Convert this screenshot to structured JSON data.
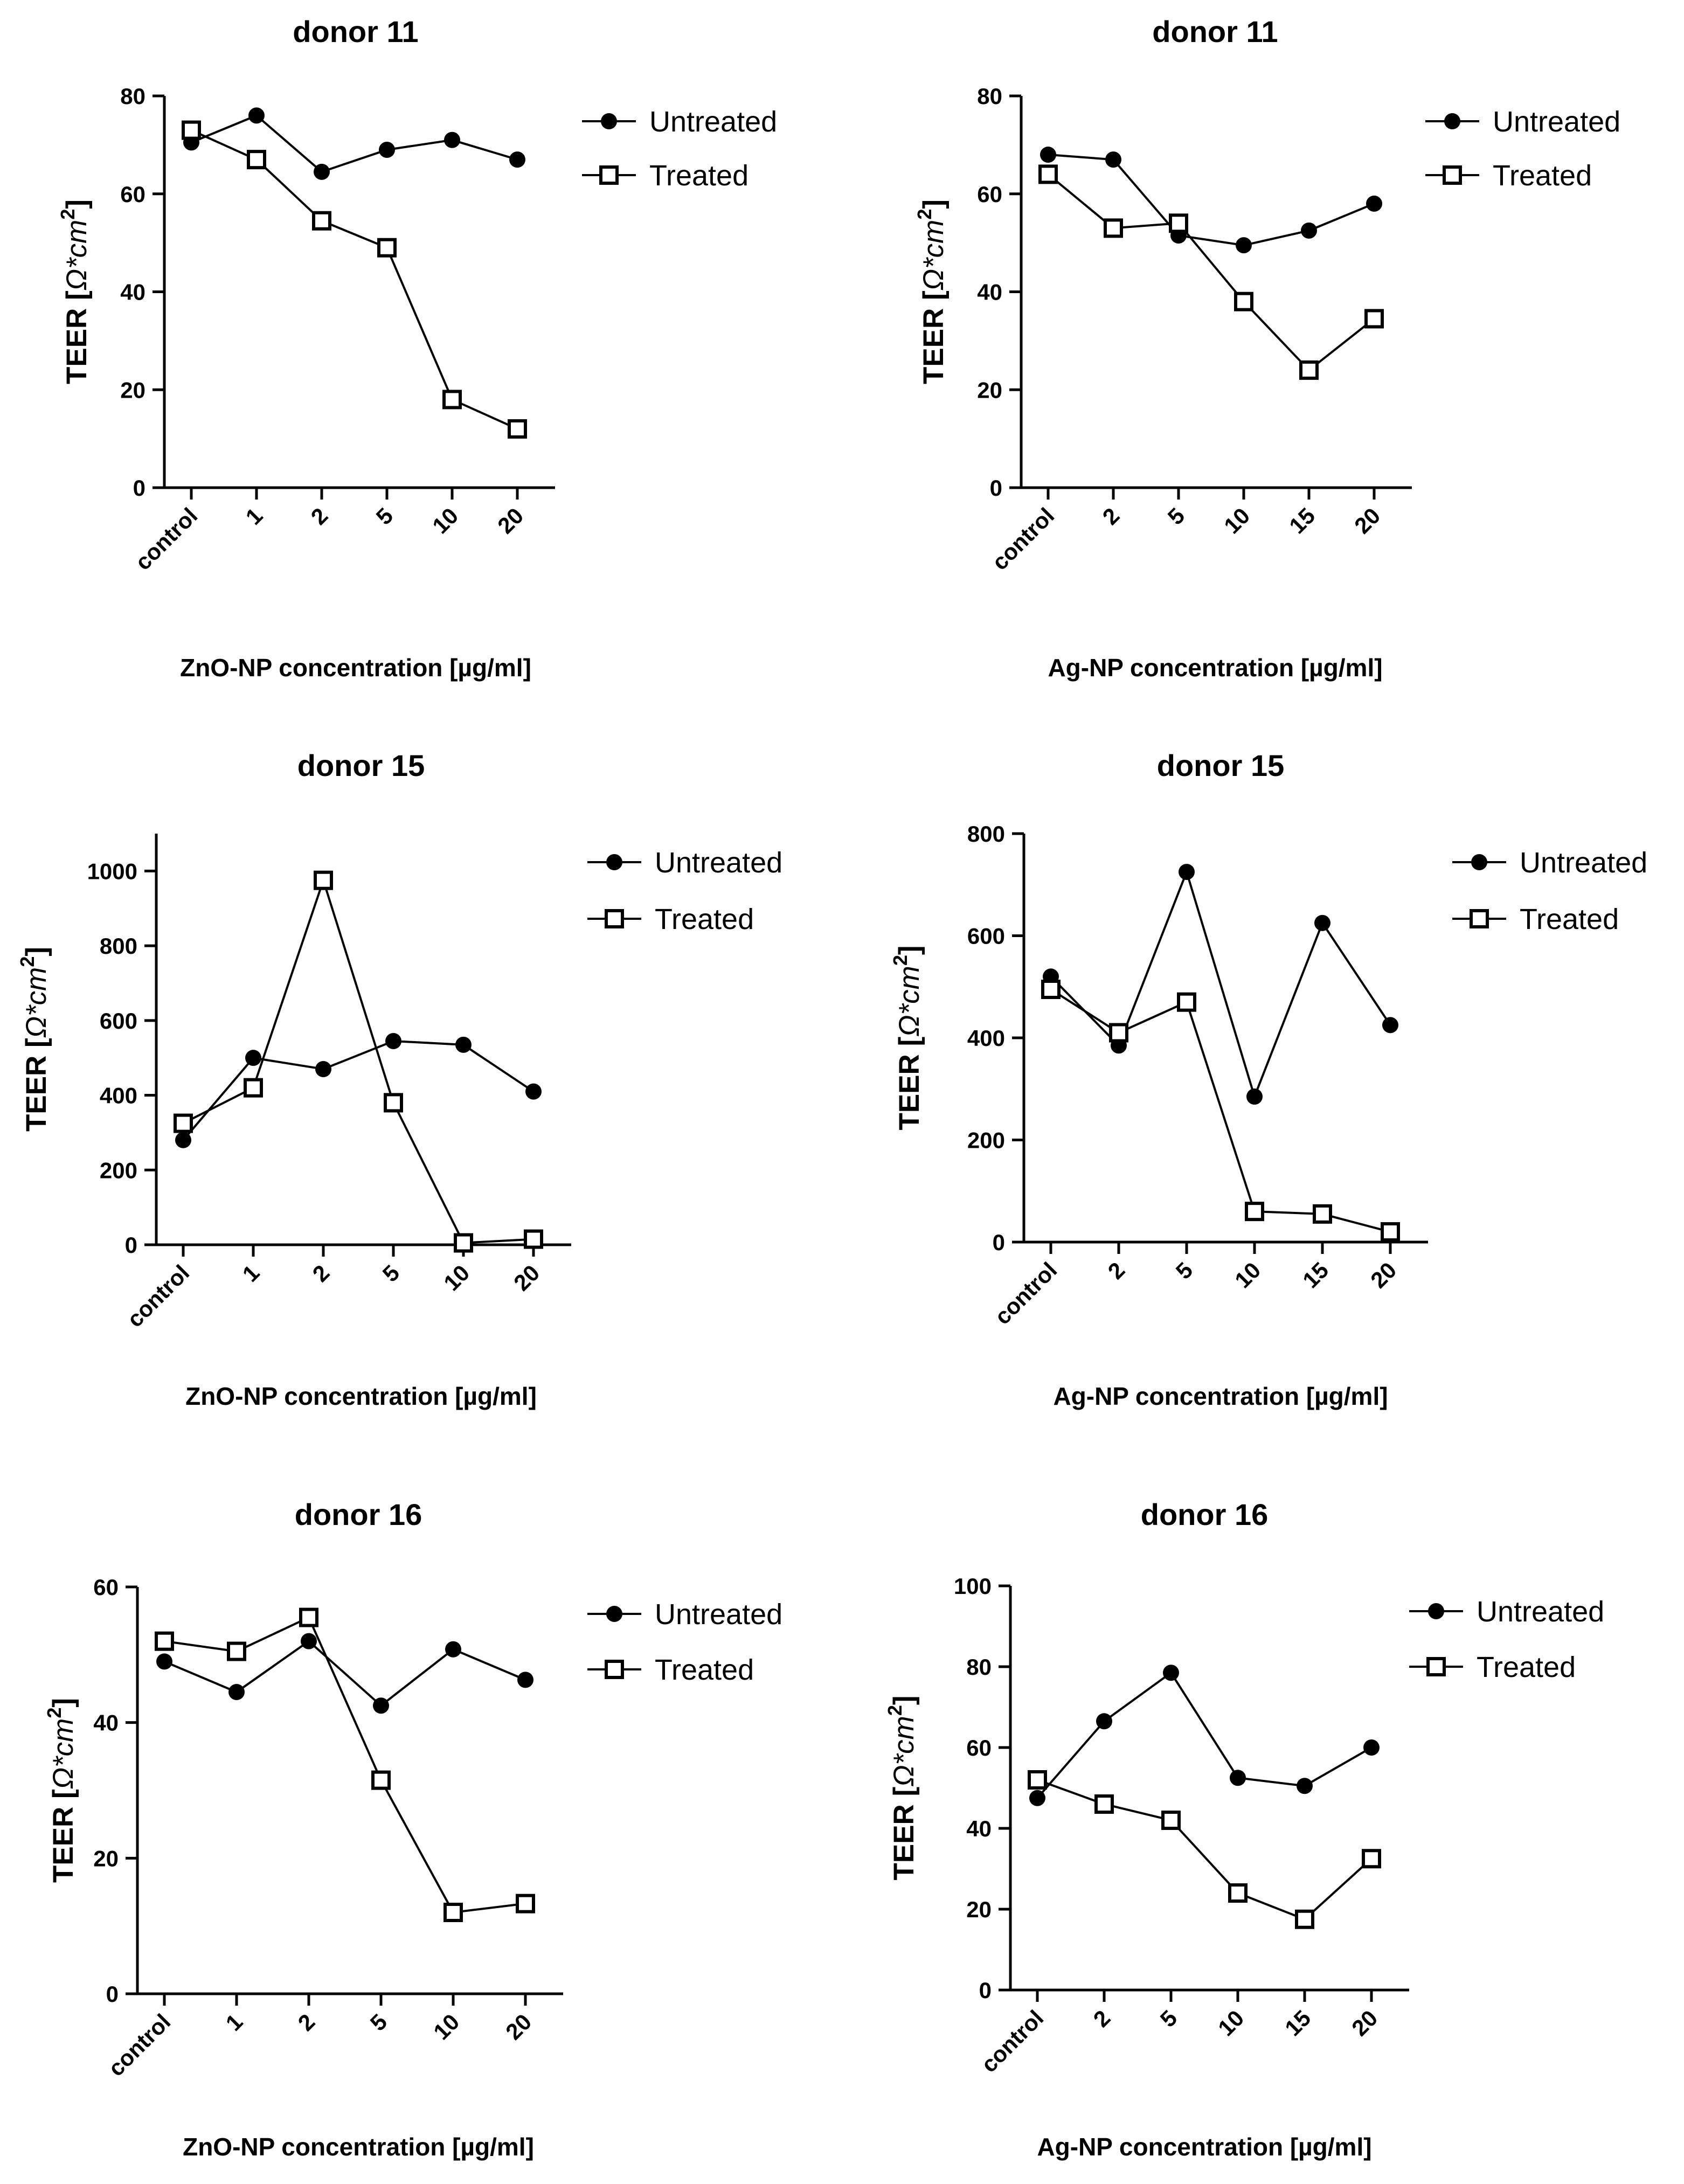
{
  "chart_data": [
    {
      "type": "line",
      "title": "donor 11",
      "xlabel": "ZnO-NP concentration [µg/ml]",
      "ylabel_main": "TEER [",
      "ylabel_unit": "Ω*cm",
      "ylabel_sup": "2",
      "ylabel_end": "]",
      "categories": [
        "control",
        "1",
        "2",
        "5",
        "10",
        "20"
      ],
      "ylim": [
        0,
        80
      ],
      "yticks": [
        "0",
        "20",
        "40",
        "60",
        "80"
      ],
      "series": [
        {
          "name": "Untreated",
          "values": [
            70.5,
            76,
            64.5,
            69,
            71,
            67
          ]
        },
        {
          "name": "Treated",
          "values": [
            73,
            67,
            54.5,
            49,
            18,
            12
          ]
        }
      ]
    },
    {
      "type": "line",
      "title": "donor 11",
      "xlabel": "Ag-NP concentration [µg/ml]",
      "ylabel_main": "TEER [",
      "ylabel_unit": "Ω*cm",
      "ylabel_sup": "2",
      "ylabel_end": "]",
      "categories": [
        "control",
        "2",
        "5",
        "10",
        "15",
        "20"
      ],
      "ylim": [
        0,
        80
      ],
      "yticks": [
        "0",
        "20",
        "40",
        "60",
        "80"
      ],
      "series": [
        {
          "name": "Untreated",
          "values": [
            68,
            67,
            51.5,
            49.5,
            52.5,
            58
          ]
        },
        {
          "name": "Treated",
          "values": [
            64,
            53,
            54,
            38,
            24,
            34.5
          ]
        }
      ]
    },
    {
      "type": "line",
      "title": "donor 15",
      "xlabel": "ZnO-NP concentration [µg/ml]",
      "ylabel_main": "TEER [",
      "ylabel_unit": "Ω*cm",
      "ylabel_sup": "2",
      "ylabel_end": "]",
      "categories": [
        "control",
        "1",
        "2",
        "5",
        "10",
        "20"
      ],
      "ylim": [
        0,
        1100
      ],
      "yticks": [
        "0",
        "200",
        "400",
        "600",
        "800",
        "1000"
      ],
      "series": [
        {
          "name": "Untreated",
          "values": [
            280,
            500,
            470,
            545,
            535,
            410
          ]
        },
        {
          "name": "Treated",
          "values": [
            325,
            420,
            975,
            380,
            5,
            15
          ]
        }
      ]
    },
    {
      "type": "line",
      "title": "donor 15",
      "xlabel": "Ag-NP concentration [µg/ml]",
      "ylabel_main": "TEER [",
      "ylabel_unit": "Ω*cm",
      "ylabel_sup": "2",
      "ylabel_end": "]",
      "categories": [
        "control",
        "2",
        "5",
        "10",
        "15",
        "20"
      ],
      "ylim": [
        0,
        800
      ],
      "yticks": [
        "0",
        "200",
        "400",
        "600",
        "800"
      ],
      "series": [
        {
          "name": "Untreated",
          "values": [
            520,
            385,
            725,
            285,
            625,
            425
          ]
        },
        {
          "name": "Treated",
          "values": [
            495,
            410,
            470,
            60,
            55,
            20
          ]
        }
      ]
    },
    {
      "type": "line",
      "title": "donor 16",
      "xlabel": "ZnO-NP concentration [µg/ml]",
      "ylabel_main": "TEER [",
      "ylabel_unit": "Ω*cm",
      "ylabel_sup": "2",
      "ylabel_end": "]",
      "categories": [
        "control",
        "1",
        "2",
        "5",
        "10",
        "20"
      ],
      "ylim": [
        0,
        60
      ],
      "yticks": [
        "0",
        "20",
        "40",
        "60"
      ],
      "series": [
        {
          "name": "Untreated",
          "values": [
            49,
            44.5,
            52,
            42.5,
            50.8,
            46.3
          ]
        },
        {
          "name": "Treated",
          "values": [
            52,
            50.5,
            55.5,
            31.5,
            12,
            13.3
          ]
        }
      ]
    },
    {
      "type": "line",
      "title": "donor 16",
      "xlabel": "Ag-NP concentration [µg/ml]",
      "ylabel_main": "TEER [",
      "ylabel_unit": "Ω*cm",
      "ylabel_sup": "2",
      "ylabel_end": "]",
      "categories": [
        "control",
        "2",
        "5",
        "10",
        "15",
        "20"
      ],
      "ylim": [
        0,
        100
      ],
      "yticks": [
        "0",
        "20",
        "40",
        "60",
        "80",
        "100"
      ],
      "series": [
        {
          "name": "Untreated",
          "values": [
            47.5,
            66.5,
            78.5,
            52.5,
            50.5,
            60
          ]
        },
        {
          "name": "Treated",
          "values": [
            52,
            46,
            42,
            24,
            17.5,
            32.5
          ]
        }
      ]
    }
  ]
}
